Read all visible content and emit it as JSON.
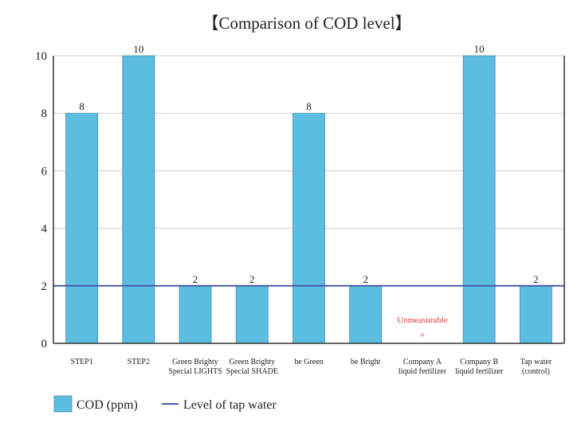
{
  "chart_data": {
    "type": "bar",
    "title": "【Comparison of COD level】",
    "categories": [
      [
        "STEP1"
      ],
      [
        "STEP2"
      ],
      [
        "Green Brighty",
        "Special LIGHTS"
      ],
      [
        "Green Brighty",
        "Special SHADE"
      ],
      [
        "be Green"
      ],
      [
        "be Bright"
      ],
      [
        "Company A",
        "liquid fertilizer"
      ],
      [
        "Company B",
        "liquid fertilizer"
      ],
      [
        "Tap water",
        "(control)"
      ]
    ],
    "series": [
      {
        "name": "COD (ppm)",
        "values": [
          8,
          10,
          2,
          2,
          8,
          2,
          null,
          10,
          2
        ],
        "color": "#5bbde0"
      }
    ],
    "data_labels": [
      "8",
      "10",
      "2",
      "2",
      "8",
      "2",
      "",
      "10",
      "2"
    ],
    "unmeasurable": {
      "index": 6,
      "text": "Unmeasurable",
      "marker": "×",
      "color": "#e03a3a"
    },
    "reference_line": {
      "name": "Level of tap water",
      "value": 2,
      "color": "#4a5aa8"
    },
    "ylim": [
      0,
      10
    ],
    "yticks": [
      0,
      2,
      4,
      6,
      8,
      10
    ],
    "xlabel": "",
    "ylabel": "",
    "grid": true,
    "legend": {
      "placement": "bottom-left",
      "items": [
        {
          "label": "COD (ppm)",
          "kind": "swatch"
        },
        {
          "label": "Level of tap water",
          "kind": "line"
        }
      ]
    }
  }
}
